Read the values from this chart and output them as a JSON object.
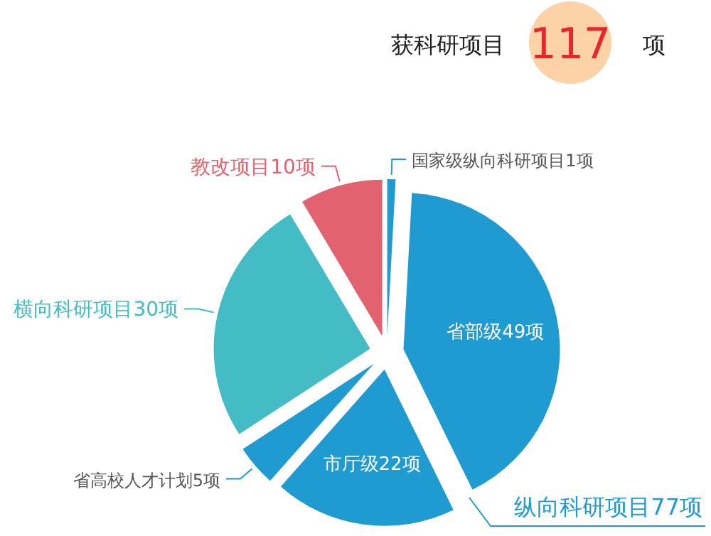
{
  "chart_data": {
    "type": "pie",
    "categories": [
      "教改项目10项",
      "横向科研项目30项",
      "省高校人才计划5项",
      "市厅级22项",
      "省部级49项",
      "国家级纵向科研项目1项"
    ],
    "values": [
      10,
      30,
      5,
      22,
      49,
      1
    ],
    "colors": [
      "#e2636f",
      "#44bcc5",
      "#1f9bd1",
      "#1f9bd1",
      "#1f9bd1",
      "#1f9bd1"
    ],
    "annotations": [
      "获科研项目",
      "117",
      "项",
      "纵向科研项目77项"
    ]
  }
}
